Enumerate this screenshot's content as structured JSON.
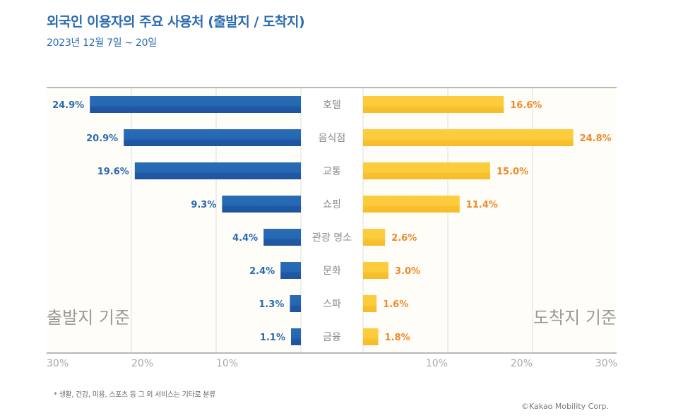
{
  "header": {
    "title": "외국인 이용자의 주요 사용처 (출발지 / 도착지)",
    "subtitle": "2023년 12월 7일 ~ 20일"
  },
  "footer": {
    "footnote": "* 생활, 건강, 미용, 스포츠 등 그 외 서비스는 기타로 분류",
    "copyright": "©Kakao Mobility Corp."
  },
  "colors": {
    "departure": "#2469b3",
    "departure_dark": "#1f55a0",
    "arrival": "#fccb3c",
    "arrival_dark": "#f6bd2a",
    "departure_label": "#2a6bb0",
    "arrival_label": "#ee8a2a",
    "background": "#fffdf8",
    "center_band": "#ffffff",
    "watermark": "#9a9a9a",
    "category_text": "#8a8a8a",
    "axis_text": "#a8a8a8"
  },
  "chart_data": {
    "type": "bar",
    "orientation": "horizontal-butterfly",
    "title": "외국인 이용자의 주요 사용처 (출발지 / 도착지)",
    "subtitle": "2023년 12월 7일 ~ 20일",
    "categories": [
      "호텔",
      "음식점",
      "교통",
      "쇼핑",
      "관광 명소",
      "문화",
      "스파",
      "금융"
    ],
    "series": [
      {
        "name": "출발지 기준",
        "side": "left",
        "values": [
          24.9,
          20.9,
          19.6,
          9.3,
          4.4,
          2.4,
          1.3,
          1.1
        ],
        "labels": [
          "24.9%",
          "20.9%",
          "19.6%",
          "9.3%",
          "4.4%",
          "2.4%",
          "1.3%",
          "1.1%"
        ]
      },
      {
        "name": "도착지 기준",
        "side": "right",
        "values": [
          16.6,
          24.8,
          15.0,
          11.4,
          2.6,
          3.0,
          1.6,
          1.8
        ],
        "labels": [
          "16.6%",
          "24.8%",
          "15.0%",
          "11.4%",
          "2.6%",
          "3.0%",
          "1.6%",
          "1.8%"
        ]
      }
    ],
    "xlim": [
      0,
      30
    ],
    "xticks": [
      30,
      20,
      10
    ],
    "xtick_labels_left": [
      "30%",
      "20%",
      "10%"
    ],
    "xtick_labels_right": [
      "10%",
      "20%",
      "30%"
    ],
    "grid": true,
    "unit": "%"
  }
}
